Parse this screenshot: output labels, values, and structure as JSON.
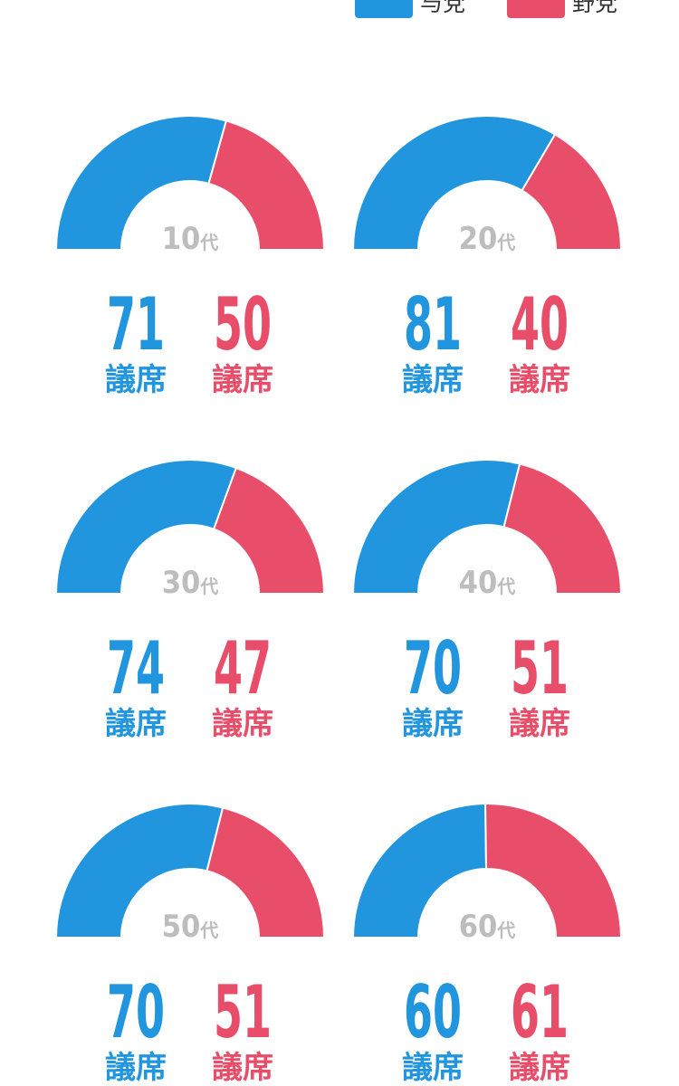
{
  "legend": {
    "ruling_label": "与党",
    "opposition_label": "野党"
  },
  "colors": {
    "ruling": "#2196de",
    "opposition": "#e84e69",
    "center_label": "#bdbdbd"
  },
  "unit_label": "議席",
  "age_suffix": "代",
  "chart_data": [
    {
      "type": "pie",
      "variant": "half-donut",
      "center_label": "10",
      "series": [
        {
          "name": "与党",
          "values": [
            71
          ]
        },
        {
          "name": "野党",
          "values": [
            50
          ]
        }
      ]
    },
    {
      "type": "pie",
      "variant": "half-donut",
      "center_label": "20",
      "series": [
        {
          "name": "与党",
          "values": [
            81
          ]
        },
        {
          "name": "野党",
          "values": [
            40
          ]
        }
      ]
    },
    {
      "type": "pie",
      "variant": "half-donut",
      "center_label": "30",
      "series": [
        {
          "name": "与党",
          "values": [
            74
          ]
        },
        {
          "name": "野党",
          "values": [
            47
          ]
        }
      ]
    },
    {
      "type": "pie",
      "variant": "half-donut",
      "center_label": "40",
      "series": [
        {
          "name": "与党",
          "values": [
            70
          ]
        },
        {
          "name": "野党",
          "values": [
            51
          ]
        }
      ]
    },
    {
      "type": "pie",
      "variant": "half-donut",
      "center_label": "50",
      "series": [
        {
          "name": "与党",
          "values": [
            70
          ]
        },
        {
          "name": "野党",
          "values": [
            51
          ]
        }
      ]
    },
    {
      "type": "pie",
      "variant": "half-donut",
      "center_label": "60",
      "series": [
        {
          "name": "与党",
          "values": [
            60
          ]
        },
        {
          "name": "野党",
          "values": [
            61
          ]
        }
      ]
    }
  ]
}
